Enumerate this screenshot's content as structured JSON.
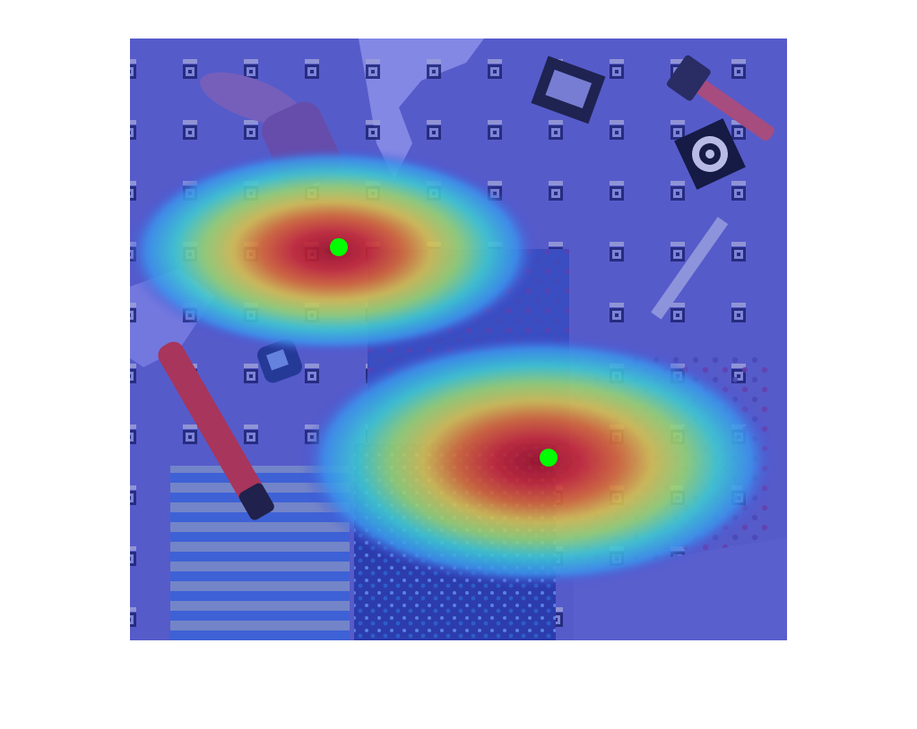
{
  "figure": {
    "background": "#ffffff",
    "overlay_tint": "#4d4fd0",
    "heatmap_colormap": "jet",
    "marker_color": "#00ff00",
    "scene_elements": [
      "pegboard-markers",
      "patterned-paper-sheets",
      "red-marker",
      "blue-sharpener",
      "target-sticker",
      "ruler",
      "hammer",
      "camera-box",
      "striped-fabric"
    ],
    "heat_peaks": [
      {
        "name": "upper-left-peak",
        "marker": true
      },
      {
        "name": "lower-right-peak",
        "marker": true
      }
    ]
  }
}
